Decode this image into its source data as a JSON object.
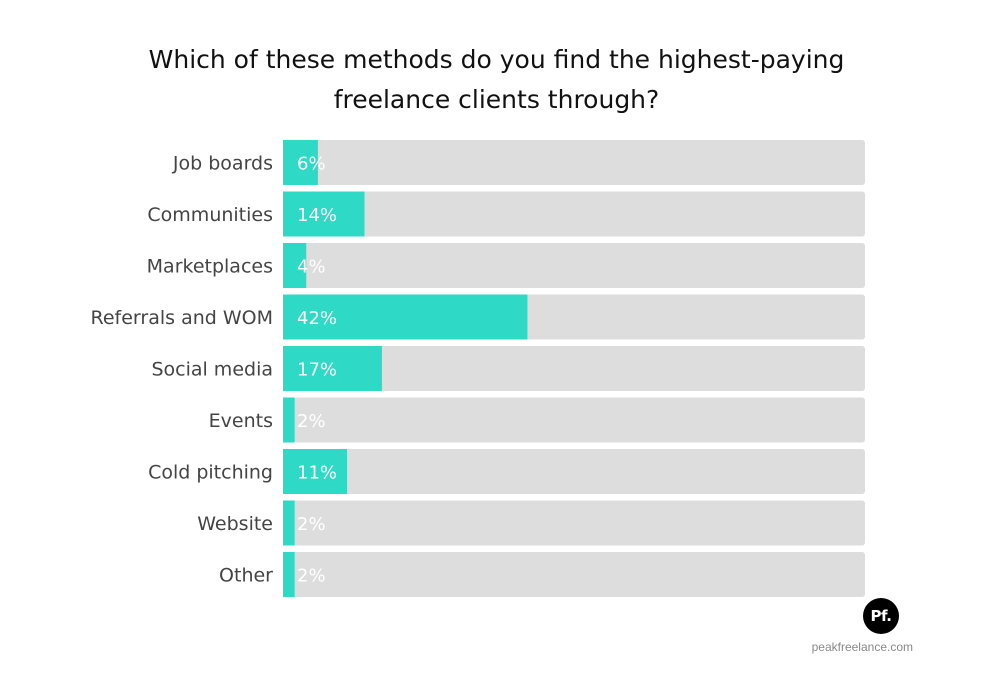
{
  "chart_data": {
    "type": "bar",
    "orientation": "horizontal",
    "title": "Which of these methods do you find the highest-paying freelance clients through?",
    "categories": [
      "Job boards",
      "Communities",
      "Marketplaces",
      "Referrals and WOM",
      "Social media",
      "Events",
      "Cold pitching",
      "Website",
      "Other"
    ],
    "values": [
      6,
      14,
      4,
      42,
      17,
      2,
      11,
      2,
      2
    ],
    "value_labels": [
      "6%",
      "14%",
      "4%",
      "42%",
      "17%",
      "2%",
      "11%",
      "2%",
      "2%"
    ],
    "xlim": [
      0,
      100
    ],
    "grid": false,
    "legend": "none",
    "colors": {
      "bar": "#2EDAC6",
      "track": "#DDDDDD",
      "category_text": "#444444",
      "value_text": "#ffffff"
    }
  },
  "brand": {
    "logo_text": "Pf.",
    "website": "peakfreelance.com"
  }
}
